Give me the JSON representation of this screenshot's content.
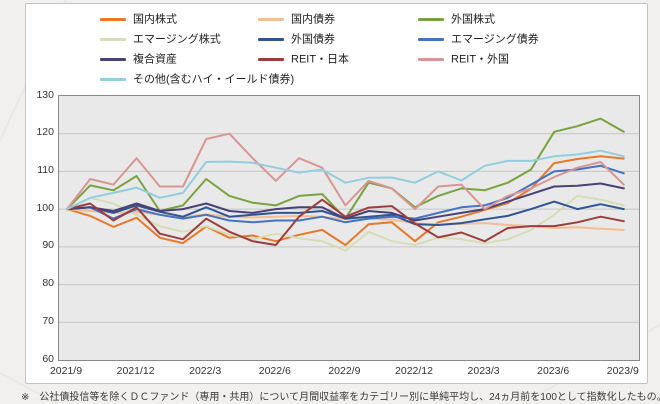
{
  "footnote": "※　公社債投信等を除くＤＣファンド（専用・共用）について月間収益率をカテゴリー別に単純平均し、24ヵ月前を100として指数化したもの。",
  "chart_data": {
    "type": "line",
    "title": "",
    "xlabel": "",
    "ylabel": "",
    "ylim": [
      60,
      130
    ],
    "y_ticks": [
      60,
      70,
      80,
      90,
      100,
      110,
      120,
      130
    ],
    "x_tick_every": 3,
    "grid": "horizontal",
    "legend_position": "top",
    "plot_bg": "#e9e9e9",
    "grid_color": "#c6c6c6",
    "border_color": "#898989",
    "x": [
      "2021/9",
      "2021/10",
      "2021/11",
      "2021/12",
      "2022/1",
      "2022/2",
      "2022/3",
      "2022/4",
      "2022/5",
      "2022/6",
      "2022/7",
      "2022/8",
      "2022/9",
      "2022/10",
      "2022/11",
      "2022/12",
      "2023/1",
      "2023/2",
      "2023/3",
      "2023/4",
      "2023/5",
      "2023/6",
      "2023/7",
      "2023/8",
      "2023/9"
    ],
    "series": [
      {
        "name": "国内株式",
        "color": "#e8782a",
        "values": [
          100,
          98.2,
          95.3,
          97.7,
          92.4,
          91,
          95.4,
          92.4,
          93,
          91.5,
          93.2,
          94.5,
          90.5,
          96,
          96.5,
          91.5,
          96.5,
          98,
          99.8,
          101.6,
          105.4,
          112.2,
          113.3,
          114,
          113.4
        ]
      },
      {
        "name": "国内債券",
        "color": "#f4be92",
        "values": [
          100,
          99.5,
          99,
          99.3,
          98.5,
          98,
          98.6,
          98,
          97.8,
          98,
          98.2,
          98,
          97.3,
          97.5,
          97.2,
          96.3,
          95.9,
          96.1,
          96.3,
          95.8,
          95.5,
          95,
          95.2,
          94.8,
          94.5
        ]
      },
      {
        "name": "外国株式",
        "color": "#79a33e",
        "values": [
          100,
          106.3,
          105,
          108.8,
          99.5,
          101,
          108,
          103.5,
          101.7,
          101,
          103.5,
          104,
          97.5,
          107,
          105.5,
          100.5,
          103.5,
          105.5,
          105,
          107,
          110.5,
          120.5,
          122,
          124,
          120.5
        ]
      },
      {
        "name": "エマージング株式",
        "color": "#d6ddb5",
        "values": [
          100,
          103,
          101.5,
          98.5,
          95.5,
          94,
          95.5,
          93.2,
          92,
          93.5,
          92.3,
          91.5,
          89,
          94,
          91.5,
          90.5,
          92.5,
          92,
          91,
          92,
          94.5,
          98.5,
          103.5,
          102.5,
          101
        ]
      },
      {
        "name": "外国債券",
        "color": "#2e5596",
        "values": [
          100,
          100.5,
          99,
          101,
          99.3,
          98,
          100.5,
          98,
          98.5,
          99,
          99,
          99.5,
          97.5,
          98,
          98.5,
          96,
          95.8,
          96.3,
          97.3,
          98.2,
          100,
          102,
          100,
          101.3,
          100
        ]
      },
      {
        "name": "エマージング債券",
        "color": "#4472c4",
        "values": [
          100,
          100.5,
          97.5,
          100,
          98.5,
          97.5,
          98.5,
          97,
          96.5,
          97,
          97,
          98,
          96.5,
          97.5,
          98,
          97.5,
          99,
          100.5,
          101,
          103,
          106.5,
          110,
          110.5,
          111.5,
          109.5
        ]
      },
      {
        "name": "複合資産",
        "color": "#4a4178",
        "values": [
          100,
          100.5,
          99.5,
          101.5,
          99.5,
          100,
          101.5,
          99.5,
          99,
          100,
          100.5,
          100.5,
          97.5,
          99.5,
          99,
          97,
          98,
          99,
          100,
          102,
          104,
          106,
          106.2,
          106.8,
          105.5
        ]
      },
      {
        "name": "REIT・日本",
        "color": "#9e3d3c",
        "values": [
          100,
          101.5,
          97,
          100.5,
          93.5,
          92,
          97.5,
          94,
          91.5,
          90.5,
          98,
          102.5,
          98,
          100.4,
          100.8,
          96.2,
          92.5,
          93.8,
          91.5,
          95,
          95.5,
          95.5,
          96.5,
          98,
          96.8
        ]
      },
      {
        "name": "REIT・外国",
        "color": "#d89694",
        "values": [
          100,
          108,
          106.5,
          113.5,
          106,
          106,
          118.6,
          120,
          113.5,
          107.5,
          113.5,
          111,
          101,
          107.5,
          105.5,
          100,
          106,
          106.5,
          100,
          103.5,
          105.5,
          108.5,
          111,
          112.5,
          106.5
        ]
      },
      {
        "name": "その他(含むハイ・イールド債券)",
        "color": "#93cdde",
        "values": [
          100,
          103,
          104.3,
          105.7,
          103,
          104.3,
          112.5,
          112.6,
          112.3,
          111,
          109.7,
          110.5,
          107,
          108.3,
          108.4,
          107,
          110,
          107.6,
          111.5,
          112.8,
          112.8,
          114,
          114.5,
          115.5,
          114
        ]
      }
    ]
  }
}
